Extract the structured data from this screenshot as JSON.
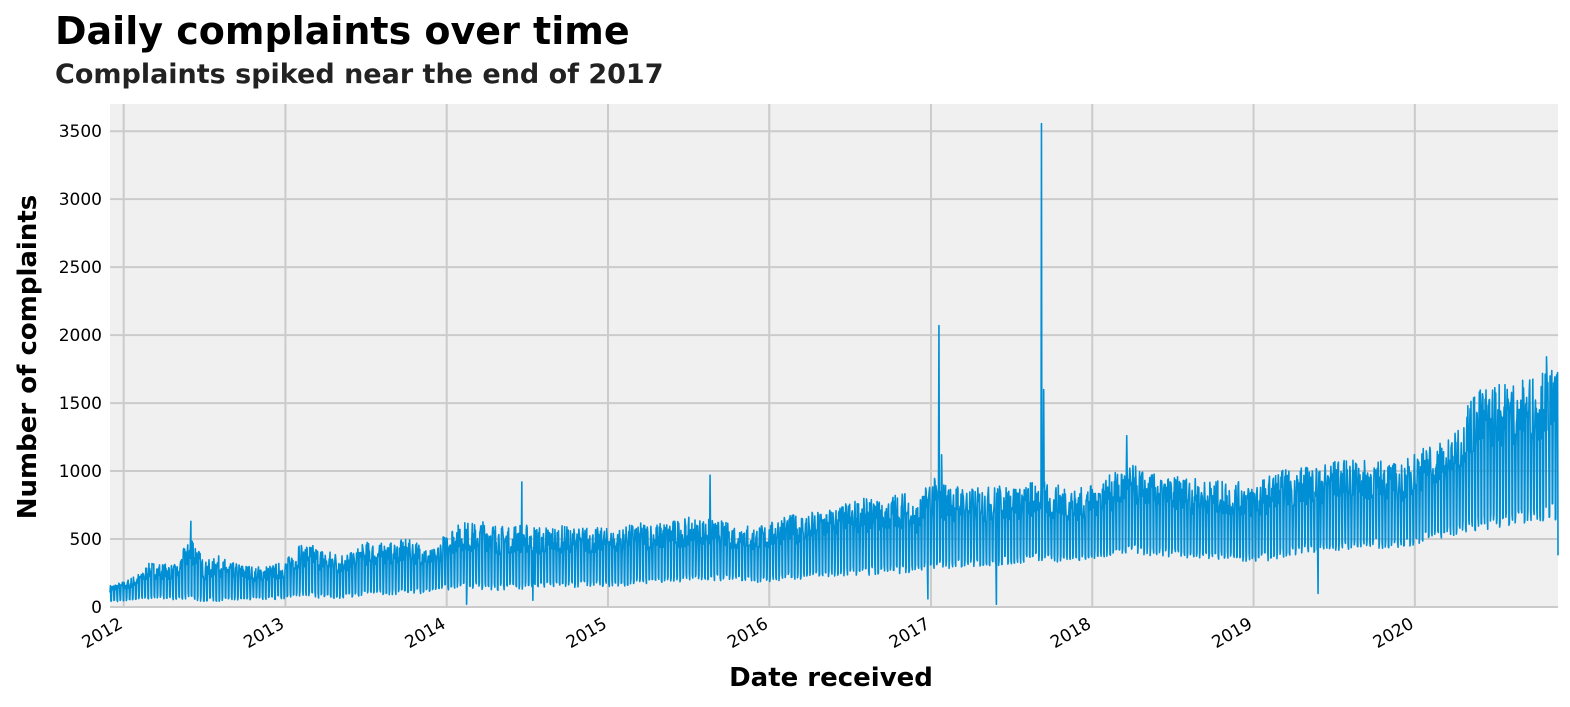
{
  "title": "Daily complaints over time",
  "subtitle": "Complaints spiked near the end of 2017",
  "chart_data": {
    "type": "line",
    "title": "Daily complaints over time",
    "subtitle": "Complaints spiked near the end of 2017",
    "xlabel": "Date received",
    "ylabel": "Number of complaints",
    "xlim": [
      "2011-12-01",
      "2020-11-20"
    ],
    "ylim": [
      0,
      3700
    ],
    "x_ticks": [
      "2012",
      "2013",
      "2014",
      "2015",
      "2016",
      "2017",
      "2018",
      "2019",
      "2020"
    ],
    "y_ticks": [
      "0",
      "500",
      "1000",
      "1500",
      "2000",
      "2500",
      "3000",
      "3500"
    ],
    "grid": true,
    "line_color": "#008fd5",
    "background_color": "#f0f0f0",
    "grid_color": "#cbcbcb",
    "series": [
      {
        "values_note": "weekly low/high envelope of daily counts (weekday highs, weekend lows); individual daily values approximated",
        "x": [
          "2011-12-01",
          "2012-01-01",
          "2012-02-01",
          "2012-03-01",
          "2012-04-01",
          "2012-05-01",
          "2012-06-01",
          "2012-07-01",
          "2012-08-01",
          "2012-09-01",
          "2012-10-01",
          "2012-11-01",
          "2012-12-01",
          "2013-01-01",
          "2013-02-01",
          "2013-03-01",
          "2013-04-01",
          "2013-05-01",
          "2013-06-01",
          "2013-07-01",
          "2013-08-01",
          "2013-09-01",
          "2013-10-01",
          "2013-11-01",
          "2013-12-01",
          "2014-01-01",
          "2014-02-01",
          "2014-03-01",
          "2014-04-01",
          "2014-05-01",
          "2014-06-01",
          "2014-07-01",
          "2014-08-01",
          "2014-09-01",
          "2014-10-01",
          "2014-11-01",
          "2014-12-01",
          "2015-01-01",
          "2015-02-01",
          "2015-03-01",
          "2015-04-01",
          "2015-05-01",
          "2015-06-01",
          "2015-07-01",
          "2015-08-01",
          "2015-09-01",
          "2015-10-01",
          "2015-11-01",
          "2015-12-01",
          "2016-01-01",
          "2016-02-01",
          "2016-03-01",
          "2016-04-01",
          "2016-05-01",
          "2016-06-01",
          "2016-07-01",
          "2016-08-01",
          "2016-09-01",
          "2016-10-01",
          "2016-11-01",
          "2016-12-01",
          "2017-01-01",
          "2017-02-01",
          "2017-03-01",
          "2017-04-01",
          "2017-05-01",
          "2017-06-01",
          "2017-07-01",
          "2017-08-01",
          "2017-09-01",
          "2017-10-01",
          "2017-11-01",
          "2017-12-01",
          "2018-01-01",
          "2018-02-01",
          "2018-03-01",
          "2018-04-01",
          "2018-05-01",
          "2018-06-01",
          "2018-07-01",
          "2018-08-01",
          "2018-09-01",
          "2018-10-01",
          "2018-11-01",
          "2018-12-01",
          "2019-01-01",
          "2019-02-01",
          "2019-03-01",
          "2019-04-01",
          "2019-05-01",
          "2019-06-01",
          "2019-07-01",
          "2019-08-01",
          "2019-09-01",
          "2019-10-01",
          "2019-11-01",
          "2019-12-01",
          "2020-01-01",
          "2020-02-01",
          "2020-03-01",
          "2020-04-01",
          "2020-05-01",
          "2020-06-01",
          "2020-07-01",
          "2020-08-01",
          "2020-09-01",
          "2020-10-01",
          "2020-11-01"
        ],
        "high": [
          160,
          190,
          240,
          330,
          320,
          310,
          560,
          330,
          380,
          330,
          310,
          300,
          310,
          340,
          470,
          460,
          420,
          400,
          400,
          480,
          470,
          480,
          500,
          480,
          420,
          560,
          640,
          620,
          640,
          600,
          620,
          610,
          590,
          600,
          600,
          590,
          590,
          580,
          580,
          620,
          620,
          620,
          640,
          660,
          650,
          650,
          620,
          620,
          590,
          620,
          680,
          680,
          700,
          720,
          740,
          780,
          800,
          790,
          830,
          850,
          760,
          960,
          920,
          900,
          880,
          880,
          900,
          900,
          910,
          950,
          900,
          900,
          880,
          900,
          960,
          1000,
          1050,
          1000,
          970,
          960,
          960,
          940,
          930,
          930,
          920,
          920,
          960,
          1010,
          1020,
          1040,
          1050,
          1080,
          1080,
          1080,
          1080,
          1080,
          1050,
          1150,
          1200,
          1230,
          1280,
          1550,
          1620,
          1650,
          1660,
          1680,
          1720,
          1750
        ],
        "low": [
          40,
          40,
          50,
          60,
          60,
          50,
          50,
          40,
          40,
          40,
          50,
          50,
          50,
          60,
          80,
          70,
          60,
          60,
          70,
          90,
          90,
          90,
          100,
          100,
          100,
          120,
          140,
          130,
          130,
          120,
          130,
          130,
          130,
          140,
          140,
          150,
          150,
          150,
          150,
          160,
          170,
          170,
          180,
          190,
          190,
          190,
          190,
          190,
          180,
          180,
          200,
          200,
          210,
          210,
          220,
          230,
          230,
          240,
          240,
          250,
          260,
          260,
          280,
          290,
          290,
          300,
          300,
          310,
          320,
          330,
          330,
          330,
          330,
          350,
          370,
          380,
          390,
          380,
          370,
          370,
          360,
          360,
          350,
          350,
          340,
          320,
          340,
          360,
          380,
          400,
          400,
          410,
          420,
          430,
          430,
          430,
          420,
          450,
          480,
          490,
          520,
          550,
          560,
          580,
          590,
          600,
          620,
          640
        ],
        "spikes": [
          {
            "x": "2012-06-01",
            "y": 630
          },
          {
            "x": "2014-06-20",
            "y": 920
          },
          {
            "x": "2015-08-20",
            "y": 970
          },
          {
            "x": "2017-01-19",
            "y": 2070
          },
          {
            "x": "2017-01-25",
            "y": 1120
          },
          {
            "x": "2017-09-08",
            "y": 3555
          },
          {
            "x": "2017-09-13",
            "y": 1600
          },
          {
            "x": "2018-03-20",
            "y": 1260
          },
          {
            "x": "2020-10-25",
            "y": 1840
          }
        ],
        "dips": [
          {
            "x": "2014-02-15",
            "y": 20
          },
          {
            "x": "2014-07-15",
            "y": 50
          },
          {
            "x": "2016-12-25",
            "y": 60
          },
          {
            "x": "2017-05-29",
            "y": 20
          },
          {
            "x": "2019-05-27",
            "y": 100
          },
          {
            "x": "2020-11-26",
            "y": 380
          }
        ]
      }
    ]
  }
}
